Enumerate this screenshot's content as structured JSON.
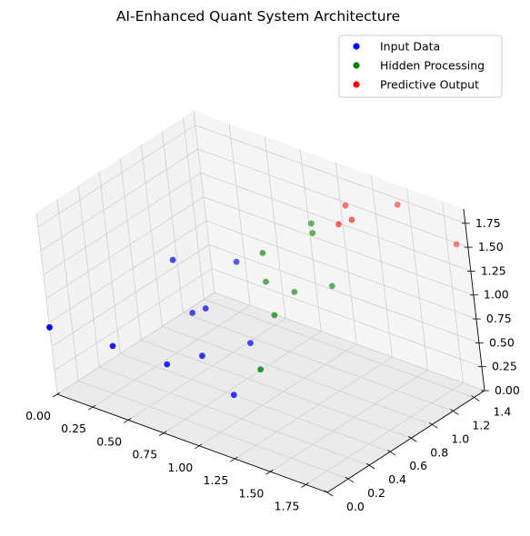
{
  "chart_data": {
    "type": "scatter",
    "projection": "3d",
    "title": "AI-Enhanced Quant System Architecture",
    "xlabel": "",
    "ylabel": "",
    "zlabel": "",
    "xlim": [
      0,
      1.9
    ],
    "ylim": [
      0,
      1.5
    ],
    "zlim": [
      0,
      1.9
    ],
    "x_ticks": [
      "0.00",
      "0.25",
      "0.50",
      "0.75",
      "1.00",
      "1.25",
      "1.50",
      "1.75"
    ],
    "y_ticks": [
      "0.0",
      "0.2",
      "0.4",
      "0.6",
      "0.8",
      "1.0",
      "1.2",
      "1.4"
    ],
    "z_ticks": [
      "0.00",
      "0.25",
      "0.50",
      "0.75",
      "1.00",
      "1.25",
      "1.50",
      "1.75"
    ],
    "grid": true,
    "legend_position": "top-right",
    "series": [
      {
        "name": "Input Data",
        "color": "#0000ff",
        "points": [
          {
            "x": 0.0,
            "y": 0.0,
            "z": 0.7
          },
          {
            "x": 0.8,
            "y": 0.6,
            "z": 0.0
          },
          {
            "x": 0.6,
            "y": 0.6,
            "z": 0.3
          },
          {
            "x": 0.8,
            "y": 0.8,
            "z": 0.4
          },
          {
            "x": 0.5,
            "y": 0.8,
            "z": 0.6
          },
          {
            "x": 0.6,
            "y": 1.0,
            "z": 1.0
          },
          {
            "x": 0.2,
            "y": 0.3,
            "z": 0.4
          },
          {
            "x": 0.5,
            "y": 0.4,
            "z": 0.3
          },
          {
            "x": 0.4,
            "y": 0.8,
            "z": 0.5
          },
          {
            "x": 0.3,
            "y": 0.8,
            "z": 1.0
          }
        ]
      },
      {
        "name": "Hidden Processing",
        "color": "#008000",
        "points": [
          {
            "x": 1.1,
            "y": 0.5,
            "z": 0.5
          },
          {
            "x": 1.0,
            "y": 0.8,
            "z": 0.8
          },
          {
            "x": 1.0,
            "y": 1.0,
            "z": 0.9
          },
          {
            "x": 0.8,
            "y": 1.0,
            "z": 0.9
          },
          {
            "x": 0.8,
            "y": 1.0,
            "z": 1.2
          },
          {
            "x": 1.1,
            "y": 1.1,
            "z": 1.5
          },
          {
            "x": 1.2,
            "y": 1.1,
            "z": 1.0
          },
          {
            "x": 1.1,
            "y": 1.1,
            "z": 1.6
          }
        ]
      },
      {
        "name": "Predictive Output",
        "color": "#ff0000",
        "points": [
          {
            "x": 1.4,
            "y": 1.1,
            "z": 1.8
          },
          {
            "x": 1.3,
            "y": 1.1,
            "z": 1.7
          },
          {
            "x": 1.2,
            "y": 1.3,
            "z": 1.7
          },
          {
            "x": 1.5,
            "y": 1.4,
            "z": 1.8
          },
          {
            "x": 1.9,
            "y": 1.4,
            "z": 1.6
          }
        ]
      }
    ]
  }
}
